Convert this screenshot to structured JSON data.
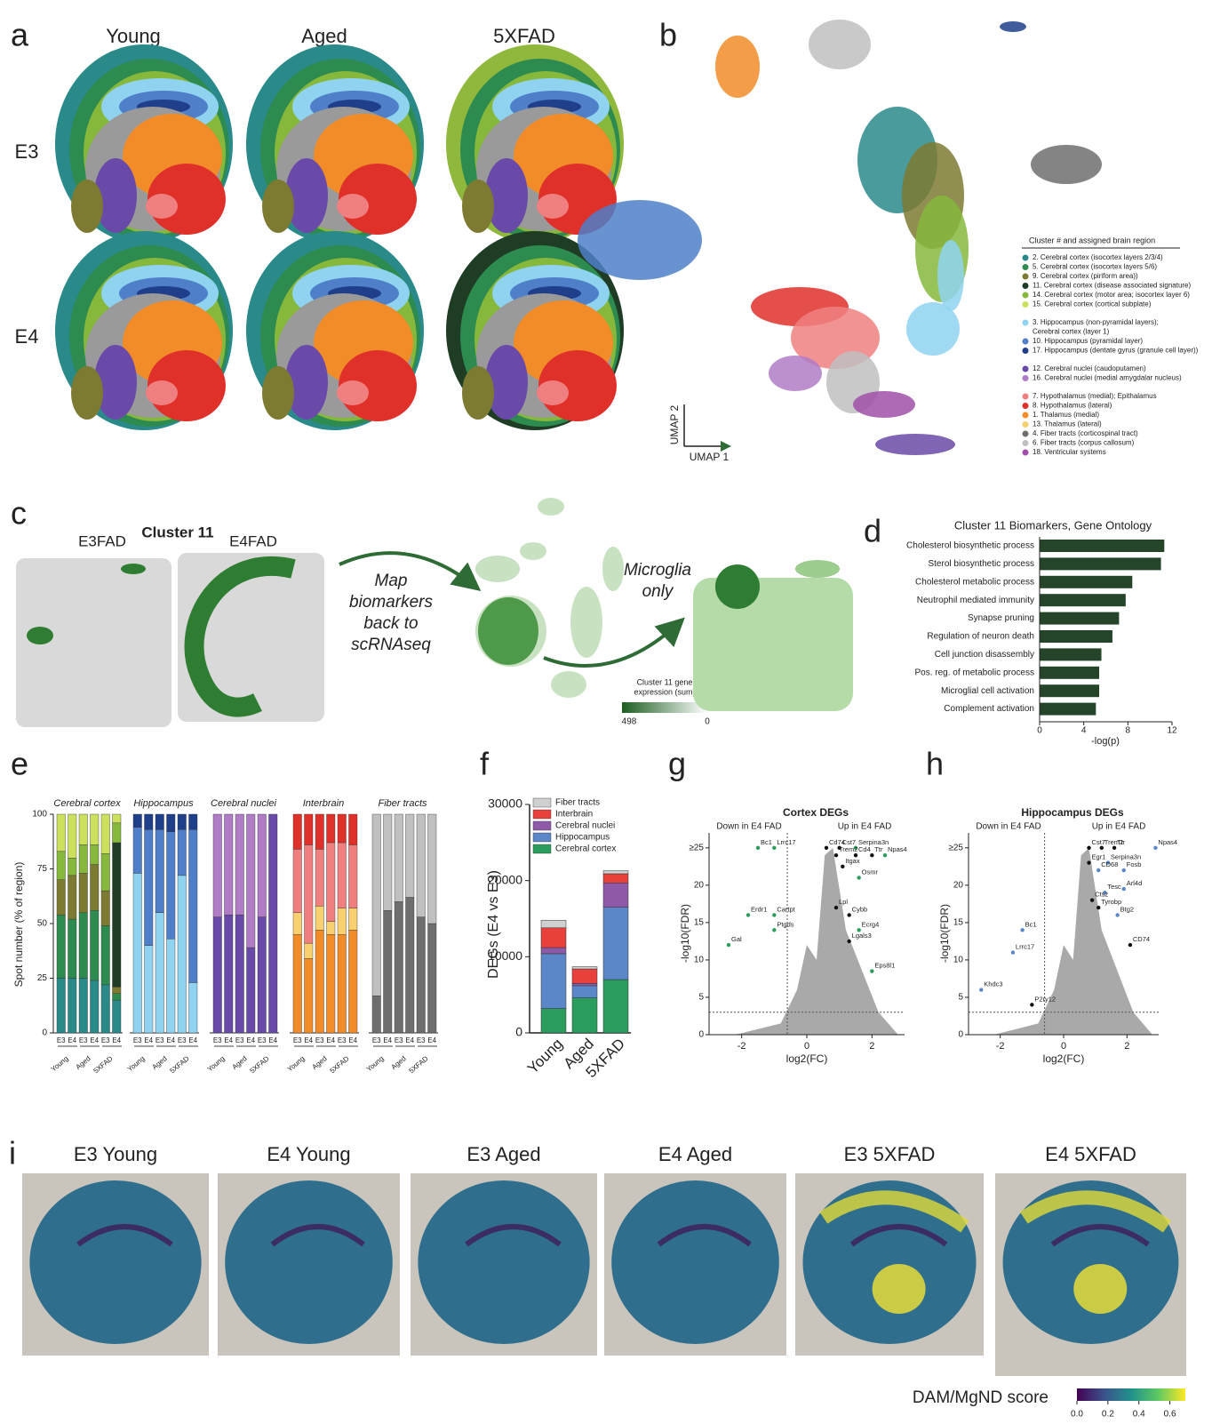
{
  "panel_labels": [
    "a",
    "b",
    "c",
    "d",
    "e",
    "f",
    "g",
    "h",
    "i"
  ],
  "a": {
    "columns": [
      "Young",
      "Aged",
      "5XFAD"
    ],
    "rows": [
      "E3",
      "E4"
    ]
  },
  "b": {
    "axis_x": "UMAP 1",
    "axis_y": "UMAP 2",
    "legend_title": "Cluster # and assigned brain region",
    "legend": [
      {
        "label": [
          "2.  Cerebral cortex (isocortex layers 2/3/4)"
        ],
        "color": "#2a8a8a"
      },
      {
        "label": [
          "5. Cerebral cortex (isocortex layers 5/6)"
        ],
        "color": "#2e8b4f"
      },
      {
        "label": [
          "9.  Cerebral cortex (piriform area))"
        ],
        "color": "#7d7a32"
      },
      {
        "label": [
          "11. Cerebral cortex (disease associated signature)"
        ],
        "color": "#1e3d24"
      },
      {
        "label": [
          "14. Cerebral cortex (motor area; isocortex layer 6)"
        ],
        "color": "#86b83c"
      },
      {
        "label": [
          "15. Cerebral cortex (cortical subplate)"
        ],
        "color": "#cde05e"
      },
      {
        "label": [
          "3. Hippocampus (non-pyramidal layers);",
          "Cerebral cortex (layer 1)"
        ],
        "color": "#8fd3f0"
      },
      {
        "label": [
          "10. Hippocampus (pyramidal layer)"
        ],
        "color": "#4e7fc8"
      },
      {
        "label": [
          "17. Hippocampus (dentate gyrus (granule cell layer))"
        ],
        "color": "#1f3f8a"
      },
      {
        "label": [
          "12. Cerebral nuclei (caudoputamen)"
        ],
        "color": "#6a4aa8"
      },
      {
        "label": [
          "16. Cerebral nuclei (medial amygdalar nucleus)"
        ],
        "color": "#b07cc6"
      },
      {
        "label": [
          "7. Hypothalamus (medial); Epithalamus"
        ],
        "color": "#f08080"
      },
      {
        "label": [
          "8. Hypothalamus (lateral)"
        ],
        "color": "#e0302a"
      },
      {
        "label": [
          "1. Thalamus (medial)"
        ],
        "color": "#f28c28"
      },
      {
        "label": [
          "13. Thalamus (lateral)"
        ],
        "color": "#f8d070"
      },
      {
        "label": [
          "4. Fiber tracts (corticospinal tract)"
        ],
        "color": "#6e6e6e"
      },
      {
        "label": [
          "6. Fiber tracts (corpus callosum)"
        ],
        "color": "#c0c0c0"
      },
      {
        "label": [
          "18. Ventricular systems"
        ],
        "color": "#a050a8"
      }
    ]
  },
  "c": {
    "left_title": "E3FAD",
    "center_title": "Cluster 11",
    "right_title": "E4FAD",
    "map_text": [
      "Map",
      "biomarkers",
      "back to",
      "scRNAseq"
    ],
    "microglia_text": [
      "Microglia",
      "only"
    ],
    "colorbar_label": [
      "Cluster 11 gene",
      "expression (sum)"
    ],
    "colorbar_ticks": [
      498,
      0
    ]
  },
  "chart_data": [
    {
      "type": "hbar",
      "title": "Cluster 11 Biomarkers, Gene Ontology",
      "title_color": "#2e7d32",
      "categories": [
        "Cholesterol biosynthetic process",
        "Sterol biosynthetic process",
        "Cholesterol metabolic process",
        "Neutrophil mediated immunity",
        "Synapse pruning",
        "Regulation of neuron death",
        "Cell junction disassembly",
        "Pos. reg. of metabolic process",
        "Microglial cell activation",
        "Complement activation"
      ],
      "values": [
        11.3,
        11.0,
        8.4,
        7.8,
        7.2,
        6.6,
        5.6,
        5.4,
        5.4,
        5.1
      ],
      "color": "#24452a",
      "xlim": [
        0,
        12
      ],
      "xticks": [
        0,
        4,
        8,
        12
      ],
      "xlabel": "-log(p)"
    },
    {
      "type": "stacked_panels",
      "ylabel": "Spot number (% of region)",
      "ylim": [
        0,
        100
      ],
      "yticks": [
        0,
        25,
        50,
        75,
        100
      ],
      "panels": [
        {
          "title": "Cerebral cortex",
          "title_color": "#4caf50",
          "categories": [
            "E3",
            "E4",
            "E3",
            "E4",
            "E3",
            "E4"
          ],
          "groups": [
            "Young",
            "Aged",
            "5XFAD"
          ],
          "series": [
            {
              "color": "#2a8a8a",
              "values": [
                25,
                25,
                25,
                24,
                22,
                15
              ]
            },
            {
              "color": "#2e8b4f",
              "values": [
                29,
                27,
                30,
                32,
                27,
                3
              ]
            },
            {
              "color": "#7d7a32",
              "values": [
                16,
                20,
                18,
                21,
                16,
                3
              ]
            },
            {
              "color": "#1e3d24",
              "values": [
                0,
                0,
                0,
                0,
                0,
                66
              ]
            },
            {
              "color": "#86b83c",
              "values": [
                13,
                8,
                13,
                9,
                17,
                9
              ]
            },
            {
              "color": "#cde05e",
              "values": [
                17,
                20,
                14,
                14,
                18,
                4
              ]
            }
          ]
        },
        {
          "title": "Hippocampus",
          "title_color": "#4a6fc0",
          "categories": [
            "E3",
            "E4",
            "E3",
            "E4",
            "E3",
            "E4"
          ],
          "groups": [
            "Young",
            "Aged",
            "5XFAD"
          ],
          "series": [
            {
              "color": "#8fd3f0",
              "values": [
                73,
                40,
                55,
                43,
                72,
                23
              ]
            },
            {
              "color": "#4e7fc8",
              "values": [
                21,
                53,
                38,
                49,
                21,
                70
              ]
            },
            {
              "color": "#1f3f8a",
              "values": [
                6,
                7,
                7,
                8,
                7,
                7
              ]
            }
          ]
        },
        {
          "title": "Cerebral nuclei",
          "title_color": "#8a5ab0",
          "categories": [
            "E3",
            "E4",
            "E3",
            "E4",
            "E3",
            "E4"
          ],
          "groups": [
            "Young",
            "Aged",
            "5XFAD"
          ],
          "series": [
            {
              "color": "#6a4aa8",
              "values": [
                53,
                54,
                54,
                39,
                53,
                100
              ]
            },
            {
              "color": "#b07cc6",
              "values": [
                47,
                46,
                46,
                61,
                47,
                0
              ]
            }
          ]
        },
        {
          "title": "Interbrain",
          "title_color": "#f07020",
          "categories": [
            "E3",
            "E4",
            "E3",
            "E4",
            "E3",
            "E4"
          ],
          "groups": [
            "Young",
            "Aged",
            "5XFAD"
          ],
          "series": [
            {
              "color": "#f28c28",
              "values": [
                45,
                34,
                47,
                45,
                45,
                47
              ]
            },
            {
              "color": "#f8d070",
              "values": [
                10,
                7,
                11,
                6,
                12,
                10
              ]
            },
            {
              "color": "#f08080",
              "values": [
                29,
                45,
                26,
                36,
                30,
                29
              ]
            },
            {
              "color": "#e0302a",
              "values": [
                16,
                14,
                16,
                13,
                13,
                14
              ]
            }
          ]
        },
        {
          "title": "Fiber tracts",
          "title_color": "#999999",
          "categories": [
            "E3",
            "E4",
            "E3",
            "E4",
            "E3",
            "E4"
          ],
          "groups": [
            "Young",
            "Aged",
            "5XFAD"
          ],
          "series": [
            {
              "color": "#6e6e6e",
              "values": [
                17,
                56,
                60,
                62,
                53,
                50
              ]
            },
            {
              "color": "#c0c0c0",
              "values": [
                83,
                44,
                40,
                38,
                47,
                50
              ]
            }
          ]
        }
      ]
    },
    {
      "type": "stacked_bar",
      "ylabel": "DEGs (E4 vs E3)",
      "categories": [
        "Young",
        "Aged",
        "5XFAD"
      ],
      "ylim": [
        0,
        30000
      ],
      "yticks": [
        0,
        10000,
        20000,
        30000
      ],
      "series": [
        {
          "name": "Cerebral cortex",
          "color": "#2a9d5c",
          "values": [
            3200,
            4600,
            7000
          ]
        },
        {
          "name": "Hippocampus",
          "color": "#5b86c8",
          "values": [
            7200,
            1600,
            9500
          ]
        },
        {
          "name": "Cerebral nuclei",
          "color": "#8e5aa8",
          "values": [
            800,
            300,
            3200
          ]
        },
        {
          "name": "Interbrain",
          "color": "#e8403a",
          "values": [
            2600,
            1900,
            1200
          ]
        },
        {
          "name": "Fiber tracts",
          "color": "#d0d0d0",
          "values": [
            1000,
            300,
            400
          ]
        }
      ]
    },
    {
      "type": "volcano",
      "title": "Cortex DEGs",
      "title_color": "#2a9d5c",
      "left_note": "Down in E4 FAD",
      "right_note": "Up in E4 FAD",
      "note_color": "#2a9d5c",
      "xlabel": "log2(FC)",
      "ylabel": "-log10(FDR)",
      "xlim": [
        -3,
        3
      ],
      "xticks": [
        -2,
        0,
        2
      ],
      "ylim": [
        0,
        27
      ],
      "yticks": [
        0,
        5,
        10,
        15,
        20,
        {
          "value": 25,
          "label": "≥25"
        }
      ],
      "threshold_x": -0.6,
      "threshold_y": 3,
      "genes": [
        {
          "name": "Bc1",
          "x": -1.5,
          "y": 25,
          "color": "#2a9d5c"
        },
        {
          "name": "Lrrc17",
          "x": -1.0,
          "y": 25,
          "color": "#2a9d5c"
        },
        {
          "name": "Erdr1",
          "x": -1.8,
          "y": 16,
          "color": "#2a9d5c"
        },
        {
          "name": "Cartpt",
          "x": -1.0,
          "y": 16,
          "color": "#2a9d5c"
        },
        {
          "name": "Ptgds",
          "x": -1.0,
          "y": 14,
          "color": "#2a9d5c"
        },
        {
          "name": "Gal",
          "x": -2.4,
          "y": 12,
          "color": "#2a9d5c"
        },
        {
          "name": "Cd74",
          "x": 0.6,
          "y": 25,
          "color": "#111111"
        },
        {
          "name": "Cst7",
          "x": 1.0,
          "y": 25,
          "color": "#111111"
        },
        {
          "name": "Serpina3n",
          "x": 1.5,
          "y": 25,
          "color": "#2a9d5c"
        },
        {
          "name": "Trem2",
          "x": 0.9,
          "y": 24,
          "color": "#111111"
        },
        {
          "name": "Cd4",
          "x": 1.5,
          "y": 24,
          "color": "#111111"
        },
        {
          "name": "Ttr",
          "x": 2.0,
          "y": 24,
          "color": "#111111"
        },
        {
          "name": "Npas4",
          "x": 2.4,
          "y": 24,
          "color": "#2a9d5c"
        },
        {
          "name": "Itgax",
          "x": 1.1,
          "y": 22.5,
          "color": "#111111"
        },
        {
          "name": "Osmr",
          "x": 1.6,
          "y": 21,
          "color": "#2a9d5c"
        },
        {
          "name": "Lpl",
          "x": 0.9,
          "y": 17,
          "color": "#111111"
        },
        {
          "name": "Cybb",
          "x": 1.3,
          "y": 16,
          "color": "#111111"
        },
        {
          "name": "Ecrg4",
          "x": 1.6,
          "y": 14,
          "color": "#2a9d5c"
        },
        {
          "name": "Lgals3",
          "x": 1.3,
          "y": 12.5,
          "color": "#111111"
        },
        {
          "name": "Eps8l1",
          "x": 2.0,
          "y": 8.5,
          "color": "#2a9d5c"
        }
      ]
    },
    {
      "type": "volcano",
      "title": "Hippocampus DEGs",
      "title_color": "#5b86c8",
      "left_note": "Down in E4 FAD",
      "right_note": "Up in E4 FAD",
      "note_color": "#5b86c8",
      "xlabel": "log2(FC)",
      "ylabel": "-log10(FDR)",
      "xlim": [
        -3,
        3
      ],
      "xticks": [
        -2,
        0,
        2
      ],
      "ylim": [
        0,
        27
      ],
      "yticks": [
        0,
        5,
        10,
        15,
        20,
        {
          "value": 25,
          "label": "≥25"
        }
      ],
      "threshold_x": -0.6,
      "threshold_y": 3,
      "genes": [
        {
          "name": "Cst7",
          "x": 0.8,
          "y": 25,
          "color": "#111111"
        },
        {
          "name": "Trem2",
          "x": 1.2,
          "y": 25,
          "color": "#111111"
        },
        {
          "name": "Ttr",
          "x": 1.6,
          "y": 25,
          "color": "#111111"
        },
        {
          "name": "Npas4",
          "x": 2.9,
          "y": 25,
          "color": "#5b86c8"
        },
        {
          "name": "Egr1",
          "x": 0.8,
          "y": 23,
          "color": "#111111"
        },
        {
          "name": "Serpina3n",
          "x": 1.4,
          "y": 23,
          "color": "#5b86c8"
        },
        {
          "name": "CD68",
          "x": 1.1,
          "y": 22,
          "color": "#5b86c8"
        },
        {
          "name": "Fosb",
          "x": 1.9,
          "y": 22,
          "color": "#5b86c8"
        },
        {
          "name": "Tesc",
          "x": 1.3,
          "y": 19,
          "color": "#5b86c8"
        },
        {
          "name": "Arl4d",
          "x": 1.9,
          "y": 19.5,
          "color": "#5b86c8"
        },
        {
          "name": "Ctsz",
          "x": 0.9,
          "y": 18,
          "color": "#111111"
        },
        {
          "name": "Tyrobp",
          "x": 1.1,
          "y": 17,
          "color": "#111111"
        },
        {
          "name": "Btg2",
          "x": 1.7,
          "y": 16,
          "color": "#5b86c8"
        },
        {
          "name": "Bc1",
          "x": -1.3,
          "y": 14,
          "color": "#5b86c8"
        },
        {
          "name": "Lrrc17",
          "x": -1.6,
          "y": 11,
          "color": "#5b86c8"
        },
        {
          "name": "CD74",
          "x": 2.1,
          "y": 12,
          "color": "#111111"
        },
        {
          "name": "Khdc3",
          "x": -2.6,
          "y": 6,
          "color": "#5b86c8"
        },
        {
          "name": "P2ry12",
          "x": -1.0,
          "y": 4,
          "color": "#111111"
        }
      ]
    }
  ],
  "i": {
    "titles": [
      {
        "text": "E3 Young",
        "color": "#f08a8a"
      },
      {
        "text": "E4 Young",
        "color": "#9fc5e8"
      },
      {
        "text": "E3 Aged",
        "color": "#2f5fb3"
      },
      {
        "text": "E4 Aged",
        "color": "#e03030"
      },
      {
        "text": "E3 5XFAD",
        "color": "#2f5fb3"
      },
      {
        "text": "E4 5XFAD",
        "color": "#c0302a"
      }
    ],
    "colorbar_label": "DAM/MgND score",
    "clim": [
      0,
      0.7
    ],
    "ticks": [
      {
        "value": 0,
        "label": "0.0"
      },
      0.2,
      0.4,
      0.6
    ]
  }
}
